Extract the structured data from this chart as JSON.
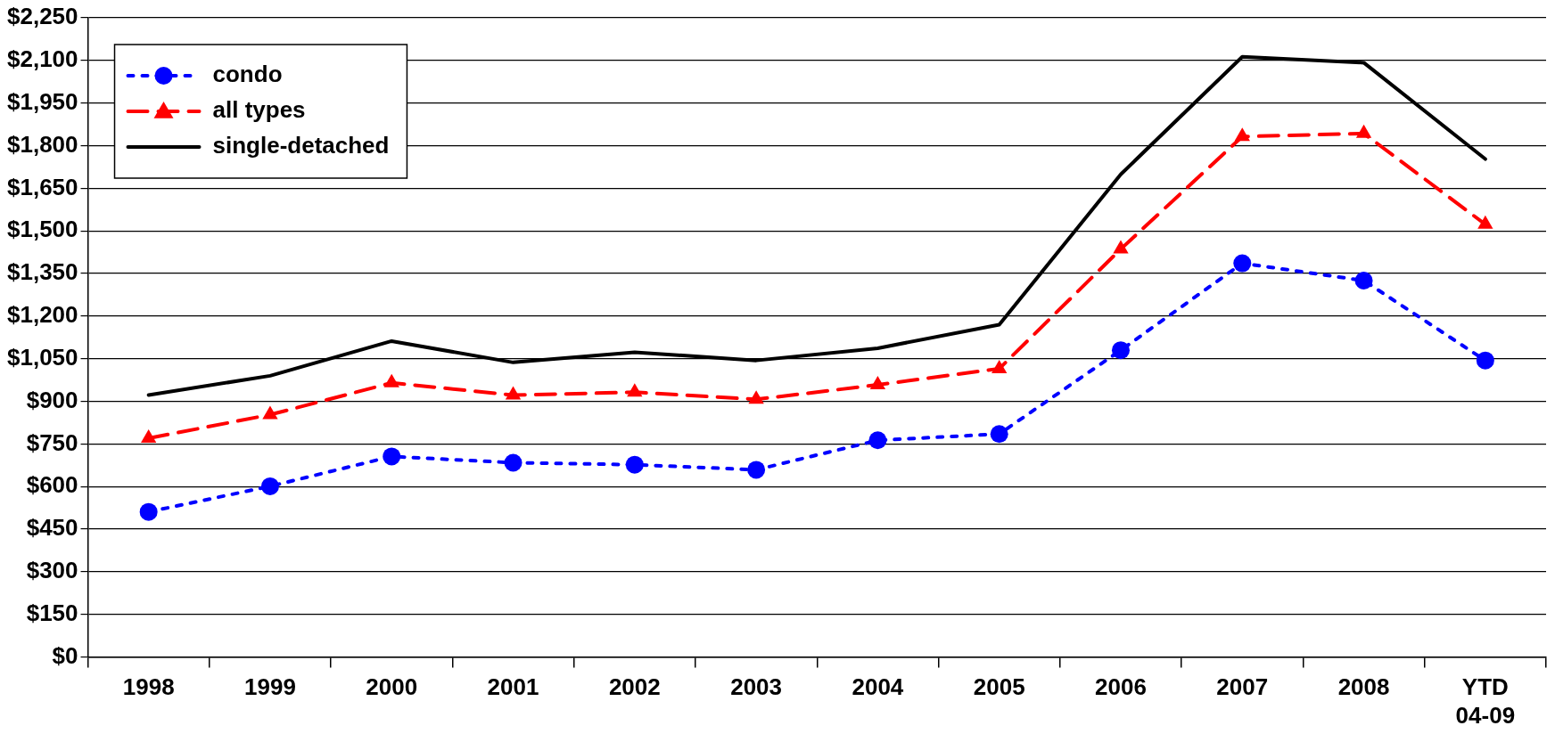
{
  "chart_data": {
    "type": "line",
    "categories": [
      "1998",
      "1999",
      "2000",
      "2001",
      "2002",
      "2003",
      "2004",
      "2005",
      "2006",
      "2007",
      "2008",
      "YTD 04-09"
    ],
    "series": [
      {
        "name": "condo",
        "color": "#0000ff",
        "marker": "circle",
        "line_style": "dotted",
        "values": [
          511,
          601,
          706,
          684,
          677,
          659,
          763,
          785,
          1080,
          1386,
          1325,
          1044
        ]
      },
      {
        "name": "all types",
        "color": "#ff0000",
        "marker": "triangle",
        "line_style": "dashed",
        "values": [
          770,
          853,
          965,
          922,
          932,
          907,
          958,
          1015,
          1436,
          1832,
          1843,
          1523
        ]
      },
      {
        "name": "single-detached",
        "color": "#000000",
        "marker": "none",
        "line_style": "solid",
        "values": [
          922,
          990,
          1112,
          1037,
          1073,
          1044,
          1087,
          1170,
          1699,
          2113,
          2092,
          1753
        ]
      }
    ],
    "ylim": [
      0,
      2250
    ],
    "yticks": [
      {
        "value": 0,
        "label": "$0"
      },
      {
        "value": 150,
        "label": "$150"
      },
      {
        "value": 300,
        "label": "$300"
      },
      {
        "value": 450,
        "label": "$450"
      },
      {
        "value": 600,
        "label": "$600"
      },
      {
        "value": 750,
        "label": "$750"
      },
      {
        "value": 900,
        "label": "$900"
      },
      {
        "value": 1050,
        "label": "$1,050"
      },
      {
        "value": 1200,
        "label": "$1,200"
      },
      {
        "value": 1350,
        "label": "$1,350"
      },
      {
        "value": 1500,
        "label": "$1,500"
      },
      {
        "value": 1650,
        "label": "$1,650"
      },
      {
        "value": 1800,
        "label": "$1,800"
      },
      {
        "value": 1950,
        "label": "$1,950"
      },
      {
        "value": 2100,
        "label": "$2,100"
      },
      {
        "value": 2250,
        "label": "$2,250"
      }
    ],
    "grid": "y",
    "legend": "top left"
  }
}
